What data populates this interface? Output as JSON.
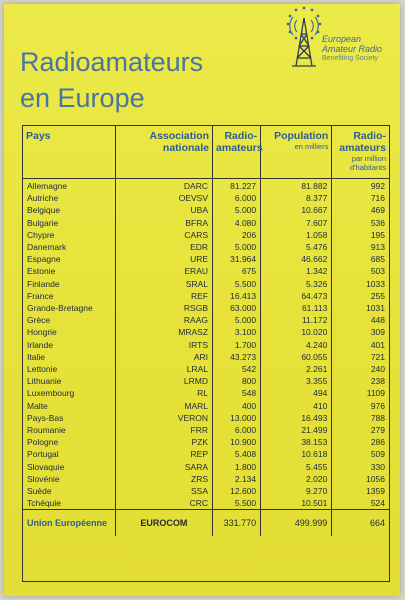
{
  "title": {
    "line1": "Radioamateurs",
    "line2": "en Europe"
  },
  "logo": {
    "name": "European Amateur Radio",
    "line1": "European",
    "line2": "Amateur Radio",
    "subtitle": "Benefiting Society"
  },
  "table": {
    "headers": {
      "country": "Pays",
      "association": "Association nationale",
      "radio": "Radio-amateurs",
      "population": "Population",
      "population_unit": "en milliers",
      "per_million": "Radio-amateurs",
      "per_million_unit": "par million d'habitants"
    },
    "rows": [
      [
        "Allemagne",
        "DARC",
        "81.227",
        "81.882",
        "992"
      ],
      [
        "Autriche",
        "OEVSV",
        "6.000",
        "8.377",
        "716"
      ],
      [
        "Belgique",
        "UBA",
        "5.000",
        "10.667",
        "469"
      ],
      [
        "Bulgarie",
        "BFRA",
        "4.080",
        "7.607",
        "536"
      ],
      [
        "Chypre",
        "CARS",
        "206",
        "1.058",
        "195"
      ],
      [
        "Danemark",
        "EDR",
        "5.000",
        "5.476",
        "913"
      ],
      [
        "Espagne",
        "URE",
        "31.964",
        "46.662",
        "685"
      ],
      [
        "Estonie",
        "ERAU",
        "675",
        "1.342",
        "503"
      ],
      [
        "Finlande",
        "SRAL",
        "5.500",
        "5.326",
        "1033"
      ],
      [
        "France",
        "REF",
        "16.413",
        "64.473",
        "255"
      ],
      [
        "Grande-Bretagne",
        "RSGB",
        "63.000",
        "61.113",
        "1031"
      ],
      [
        "Grèce",
        "RAAG",
        "5.000",
        "11.172",
        "448"
      ],
      [
        "Hongrie",
        "MRASZ",
        "3.100",
        "10.020",
        "309"
      ],
      [
        "Irlande",
        "IRTS",
        "1.700",
        "4.240",
        "401"
      ],
      [
        "Italie",
        "ARI",
        "43.273",
        "60.055",
        "721"
      ],
      [
        "Lettonie",
        "LRAL",
        "542",
        "2.261",
        "240"
      ],
      [
        "Lithuanie",
        "LRMD",
        "800",
        "3.355",
        "238"
      ],
      [
        "Luxembourg",
        "RL",
        "548",
        "494",
        "1109"
      ],
      [
        "Malte",
        "MARL",
        "400",
        "410",
        "976"
      ],
      [
        "Pays-Bas",
        "VERON",
        "13.000",
        "16.493",
        "788"
      ],
      [
        "Roumanie",
        "FRR",
        "6.000",
        "21.499",
        "279"
      ],
      [
        "Pologne",
        "PZK",
        "10.900",
        "38.153",
        "286"
      ],
      [
        "Portugal",
        "REP",
        "5.408",
        "10.618",
        "509"
      ],
      [
        "Slovaquie",
        "SARA",
        "1.800",
        "5.455",
        "330"
      ],
      [
        "Slovénie",
        "ZRS",
        "2.134",
        "2.020",
        "1056"
      ],
      [
        "Suède",
        "SSA",
        "12.600",
        "9.270",
        "1359"
      ],
      [
        "Tchéquie",
        "CRC",
        "5.500",
        "10.501",
        "524"
      ]
    ],
    "total": [
      "Union Européenne",
      "EUROCOM",
      "331.770",
      "499.999",
      "664"
    ]
  },
  "colors": {
    "paper": "#e6e23a",
    "heading": "#4a74a3",
    "header_text": "#2d5c98",
    "rule": "#333333"
  }
}
